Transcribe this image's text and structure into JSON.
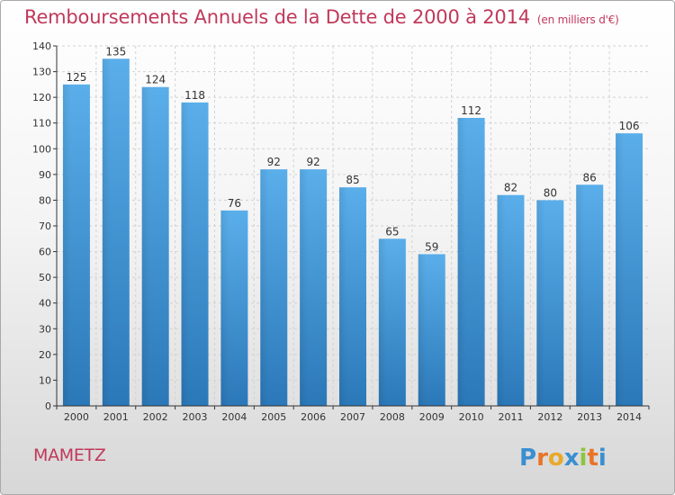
{
  "header": {
    "title": "Remboursements Annuels de la Dette de 2000 à 2014",
    "unit": "(en milliers d'€)"
  },
  "footer": {
    "commune": "MAMETZ",
    "brand": "Proxiti"
  },
  "colors": {
    "title": "#c0395a",
    "bar_top": "#5aaeea",
    "bar_bottom": "#2b78b8",
    "axis": "#333333"
  },
  "chart_data": {
    "type": "bar",
    "title": "Remboursements Annuels de la Dette de 2000 à 2014",
    "xlabel": "",
    "ylabel": "",
    "categories": [
      "2000",
      "2001",
      "2002",
      "2003",
      "2004",
      "2005",
      "2006",
      "2007",
      "2008",
      "2009",
      "2010",
      "2011",
      "2012",
      "2013",
      "2014"
    ],
    "values": [
      125,
      135,
      124,
      118,
      76,
      92,
      92,
      85,
      65,
      59,
      112,
      82,
      80,
      86,
      106
    ],
    "ylim": [
      0,
      140
    ],
    "yticks": [
      0,
      10,
      20,
      30,
      40,
      50,
      60,
      70,
      80,
      90,
      100,
      110,
      120,
      130,
      140
    ],
    "grid": true,
    "legend": "none"
  }
}
